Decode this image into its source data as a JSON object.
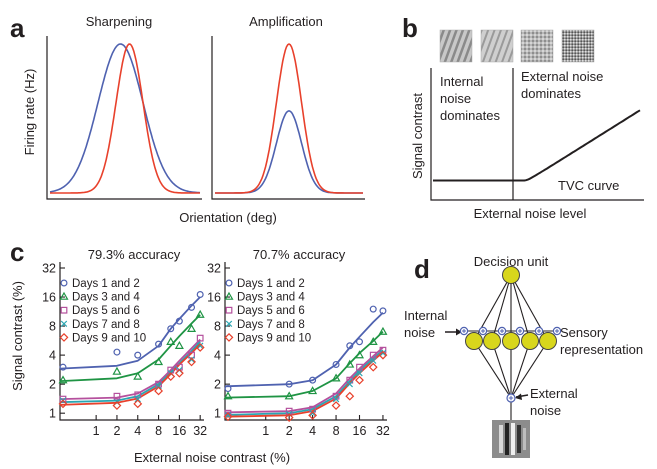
{
  "panel_letters": {
    "a": "a",
    "b": "b",
    "c": "c",
    "d": "d"
  },
  "colors": {
    "blue": "#4f62b0",
    "red": "#e8412c",
    "green": "#1f9444",
    "magenta": "#b5509d",
    "teal": "#2aa6b2",
    "node": "#d8d61c",
    "text": "#231f20"
  },
  "panel_a": {
    "title_left": "Sharpening",
    "title_right": "Amplification",
    "ylabel": "Firing rate (Hz)",
    "xlabel": "Orientation (deg)"
  },
  "panel_b": {
    "ylabel": "Signal contrast",
    "xlabel": "External noise level",
    "internal_label": [
      "Internal",
      "noise",
      "dominates"
    ],
    "external_label": [
      "External noise",
      "dominates"
    ],
    "curve_label": "TVC curve"
  },
  "panel_c": {
    "ylabel": "Signal contrast (%)",
    "xlabel": "External noise contrast (%)",
    "y_ticks": [
      "32",
      "16",
      "8",
      "4",
      "2",
      "1"
    ],
    "x_ticks": [
      "1",
      "2",
      "4",
      "8",
      "16",
      "32"
    ],
    "legend": [
      "Days 1 and 2",
      "Days 3 and 4",
      "Days 5 and 6",
      "Days 7 and 8",
      "Days 9 and 10"
    ]
  },
  "panel_d": {
    "decision_label": "Decision unit",
    "internal_label": [
      "Internal",
      "noise"
    ],
    "sensory_label": [
      "Sensory",
      "representation"
    ],
    "external_label": [
      "External",
      "noise"
    ]
  },
  "chart_data": [
    {
      "type": "line",
      "title": "Sharpening",
      "xlabel": "Orientation (deg)",
      "ylabel": "Firing rate (Hz)",
      "series": [
        {
          "color": "#4f62b0",
          "shape": "gaussian",
          "center": 0.47,
          "width": 0.15,
          "peak": 1.0,
          "baseline": 0.02
        },
        {
          "color": "#e8412c",
          "shape": "gaussian",
          "center": 0.53,
          "width": 0.09,
          "peak": 1.0,
          "baseline": 0.02
        }
      ]
    },
    {
      "type": "line",
      "title": "Amplification",
      "xlabel": "Orientation (deg)",
      "ylabel": "Firing rate (Hz)",
      "series": [
        {
          "color": "#4f62b0",
          "shape": "gaussian",
          "center": 0.5,
          "width": 0.085,
          "peak": 0.56,
          "baseline": 0.02
        },
        {
          "color": "#e8412c",
          "shape": "gaussian",
          "center": 0.5,
          "width": 0.085,
          "peak": 1.0,
          "baseline": 0.02
        }
      ]
    },
    {
      "type": "line",
      "title": "",
      "xlabel": "External noise level",
      "ylabel": "Signal contrast",
      "series": [
        {
          "color": "#231f20",
          "shape": "tvc",
          "flat_level": 0.15,
          "knee": 0.44,
          "slope": 1.0
        }
      ]
    },
    {
      "type": "scatter",
      "title": "79.3% accuracy",
      "xlabel": "External noise contrast (%)",
      "ylabel": "Signal contrast (%)",
      "xscale": "log",
      "yscale": "log",
      "xlim": [
        0.3,
        34
      ],
      "ylim": [
        0.85,
        32
      ],
      "x_ticks": [
        1,
        2,
        4,
        8,
        16,
        32
      ],
      "y_ticks": [
        1,
        2,
        4,
        8,
        16,
        32
      ],
      "x": [
        0.3,
        2,
        4,
        8,
        12,
        16,
        24,
        32
      ],
      "series": [
        {
          "name": "Days 1 and 2",
          "color": "#4f62b0",
          "marker": "circle",
          "values": [
            3.0,
            4.3,
            4.0,
            5.2,
            7.5,
            9.0,
            12.5,
            17.0
          ],
          "fit": [
            2.9,
            3.1,
            3.5,
            5.0,
            7.5,
            9.5,
            13.0,
            16.0
          ]
        },
        {
          "name": "Days 3 and 4",
          "color": "#1f9444",
          "marker": "triangle",
          "values": [
            2.2,
            2.7,
            2.4,
            3.4,
            5.5,
            5.0,
            7.5,
            10.5
          ],
          "fit": [
            2.15,
            2.3,
            2.6,
            3.6,
            5.0,
            6.3,
            8.5,
            10.5
          ]
        },
        {
          "name": "Days 5 and 6",
          "color": "#b5509d",
          "marker": "square",
          "values": [
            1.4,
            1.5,
            1.55,
            2.0,
            2.8,
            3.0,
            4.0,
            6.0
          ],
          "fit": [
            1.4,
            1.45,
            1.6,
            2.1,
            2.8,
            3.5,
            4.7,
            5.8
          ]
        },
        {
          "name": "Days 7 and 8",
          "color": "#2aa6b2",
          "marker": "x",
          "values": [
            1.35,
            1.3,
            1.4,
            1.9,
            2.6,
            2.8,
            3.6,
            5.0
          ],
          "fit": [
            1.3,
            1.35,
            1.5,
            2.0,
            2.65,
            3.3,
            4.4,
            5.5
          ]
        },
        {
          "name": "Days 9 and 10",
          "color": "#e8412c",
          "marker": "diamond",
          "values": [
            1.25,
            1.2,
            1.25,
            1.7,
            2.4,
            2.6,
            3.4,
            4.8
          ],
          "fit": [
            1.22,
            1.28,
            1.42,
            1.9,
            2.55,
            3.2,
            4.2,
            5.2
          ]
        }
      ]
    },
    {
      "type": "scatter",
      "title": "70.7% accuracy",
      "xlabel": "External noise contrast (%)",
      "ylabel": "Signal contrast (%)",
      "xscale": "log",
      "yscale": "log",
      "xlim": [
        0.3,
        34
      ],
      "ylim": [
        0.85,
        32
      ],
      "x_ticks": [
        1,
        2,
        4,
        8,
        16,
        32
      ],
      "y_ticks": [
        1,
        2,
        4,
        8,
        16,
        32
      ],
      "x": [
        0.3,
        2,
        4,
        8,
        12,
        16,
        24,
        32
      ],
      "series": [
        {
          "name": "Days 1 and 2",
          "color": "#4f62b0",
          "marker": "circle",
          "values": [
            1.8,
            2.0,
            2.2,
            3.2,
            5.0,
            5.5,
            12.0,
            11.5
          ],
          "fit": [
            1.9,
            2.0,
            2.2,
            3.2,
            4.8,
            6.2,
            8.8,
            11.0
          ]
        },
        {
          "name": "Days 3 and 4",
          "color": "#1f9444",
          "marker": "triangle",
          "values": [
            1.5,
            1.5,
            1.7,
            2.3,
            3.2,
            4.0,
            5.5,
            7.0
          ],
          "fit": [
            1.45,
            1.5,
            1.7,
            2.3,
            3.3,
            4.2,
            5.6,
            7.0
          ]
        },
        {
          "name": "Days 5 and 6",
          "color": "#b5509d",
          "marker": "square",
          "values": [
            1.0,
            1.05,
            1.1,
            1.5,
            2.2,
            3.0,
            4.0,
            4.5
          ],
          "fit": [
            1.02,
            1.05,
            1.15,
            1.6,
            2.3,
            2.9,
            3.9,
            4.8
          ]
        },
        {
          "name": "Days 7 and 8",
          "color": "#2aa6b2",
          "marker": "x",
          "values": [
            0.95,
            0.98,
            1.0,
            1.4,
            2.0,
            2.6,
            3.5,
            4.2
          ],
          "fit": [
            0.96,
            1.0,
            1.1,
            1.5,
            2.15,
            2.75,
            3.7,
            4.5
          ]
        },
        {
          "name": "Days 9 and 10",
          "color": "#e8412c",
          "marker": "diamond",
          "values": [
            0.92,
            0.9,
            0.95,
            1.2,
            1.5,
            2.2,
            3.0,
            4.0
          ],
          "fit": [
            0.92,
            0.95,
            1.05,
            1.42,
            2.05,
            2.6,
            3.5,
            4.3
          ]
        }
      ]
    }
  ]
}
